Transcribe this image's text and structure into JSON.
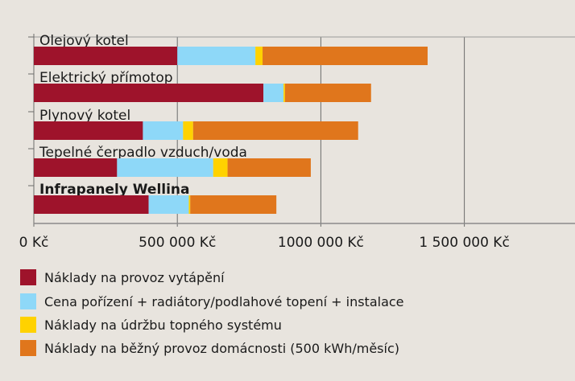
{
  "chart_data": {
    "type": "bar",
    "orientation": "horizontal",
    "stacked": true,
    "categories": [
      "Olejový kotel",
      "Elektrický přímotop",
      "Plynový kotel",
      "Tepelné čerpadlo vzduch/voda",
      "Infrapanely Wellina"
    ],
    "highlighted_category": "Infrapanely Wellina",
    "series": [
      {
        "name": "Náklady na provoz vytápění",
        "color": "#9e132b",
        "values": [
          500000,
          800000,
          380000,
          290000,
          400000
        ]
      },
      {
        "name": "Cena pořízení + radiátory/podlahové topení + instalace",
        "color": "#8ed8f8",
        "values": [
          272000,
          70000,
          140000,
          335000,
          140000
        ]
      },
      {
        "name": "Náklady na údržbu topného systému",
        "color": "#ffd200",
        "values": [
          25000,
          5000,
          35000,
          50000,
          5000
        ]
      },
      {
        "name": "Náklady na běžný provoz domácnosti (500 kWh/měsíc)",
        "color": "#e0761c",
        "values": [
          575000,
          300000,
          575000,
          290000,
          300000
        ]
      }
    ],
    "xlim": [
      0,
      1500000
    ],
    "x_ticks": [
      0,
      500000,
      1000000,
      1500000
    ],
    "x_tick_labels": [
      "0 Kč",
      "500 000 Kč",
      "1000 000 Kč",
      "1 500 000 Kč"
    ],
    "grid": true,
    "legend_position": "bottom",
    "title": "",
    "xlabel": "",
    "ylabel": ""
  }
}
